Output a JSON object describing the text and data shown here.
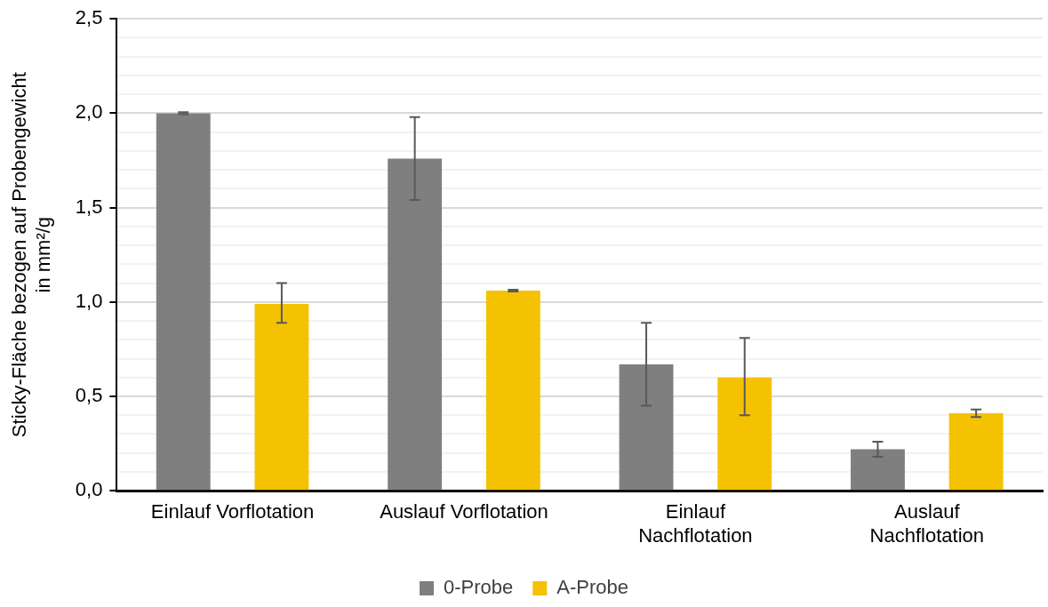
{
  "chart_data": {
    "type": "bar",
    "ylabel": "Sticky-Fläche bezogen auf Probengewicht\nin mm²/g",
    "categories": [
      "Einlauf Vorflotation",
      "Auslauf Vorflotation",
      "Einlauf\nNachflotation",
      "Auslauf\nNachflotation"
    ],
    "series": [
      {
        "name": "0-Probe",
        "color": "#7f7f7f",
        "values": [
          2.0,
          1.76,
          0.67,
          0.22
        ],
        "errors": [
          [
            1.995,
            2.005
          ],
          [
            1.54,
            1.98
          ],
          [
            0.45,
            0.89
          ],
          [
            0.18,
            0.26
          ]
        ]
      },
      {
        "name": "A-Probe",
        "color": "#f4c200",
        "values": [
          0.99,
          1.06,
          0.6,
          0.41
        ],
        "errors": [
          [
            0.89,
            1.1
          ],
          [
            1.055,
            1.065
          ],
          [
            0.4,
            0.81
          ],
          [
            0.39,
            0.43
          ]
        ]
      }
    ],
    "ylim": [
      0,
      2.5
    ],
    "yticks": [
      {
        "value": 0,
        "label": "0,0"
      },
      {
        "value": 0.1,
        "label": null
      },
      {
        "value": 0.2,
        "label": null
      },
      {
        "value": 0.3,
        "label": null
      },
      {
        "value": 0.4,
        "label": null
      },
      {
        "value": 0.5,
        "label": "0,5"
      },
      {
        "value": 0.6,
        "label": null
      },
      {
        "value": 0.7,
        "label": null
      },
      {
        "value": 0.8,
        "label": null
      },
      {
        "value": 0.9,
        "label": null
      },
      {
        "value": 1.0,
        "label": "1,0"
      },
      {
        "value": 1.1,
        "label": null
      },
      {
        "value": 1.2,
        "label": null
      },
      {
        "value": 1.3,
        "label": null
      },
      {
        "value": 1.4,
        "label": null
      },
      {
        "value": 1.5,
        "label": "1,5"
      },
      {
        "value": 1.6,
        "label": null
      },
      {
        "value": 1.7,
        "label": null
      },
      {
        "value": 1.8,
        "label": null
      },
      {
        "value": 1.9,
        "label": null
      },
      {
        "value": 2.0,
        "label": "2,0"
      },
      {
        "value": 2.1,
        "label": null
      },
      {
        "value": 2.2,
        "label": null
      },
      {
        "value": 2.3,
        "label": null
      },
      {
        "value": 2.4,
        "label": null
      },
      {
        "value": 2.5,
        "label": "2,5"
      }
    ],
    "grid": "y",
    "legend": "bottom"
  }
}
